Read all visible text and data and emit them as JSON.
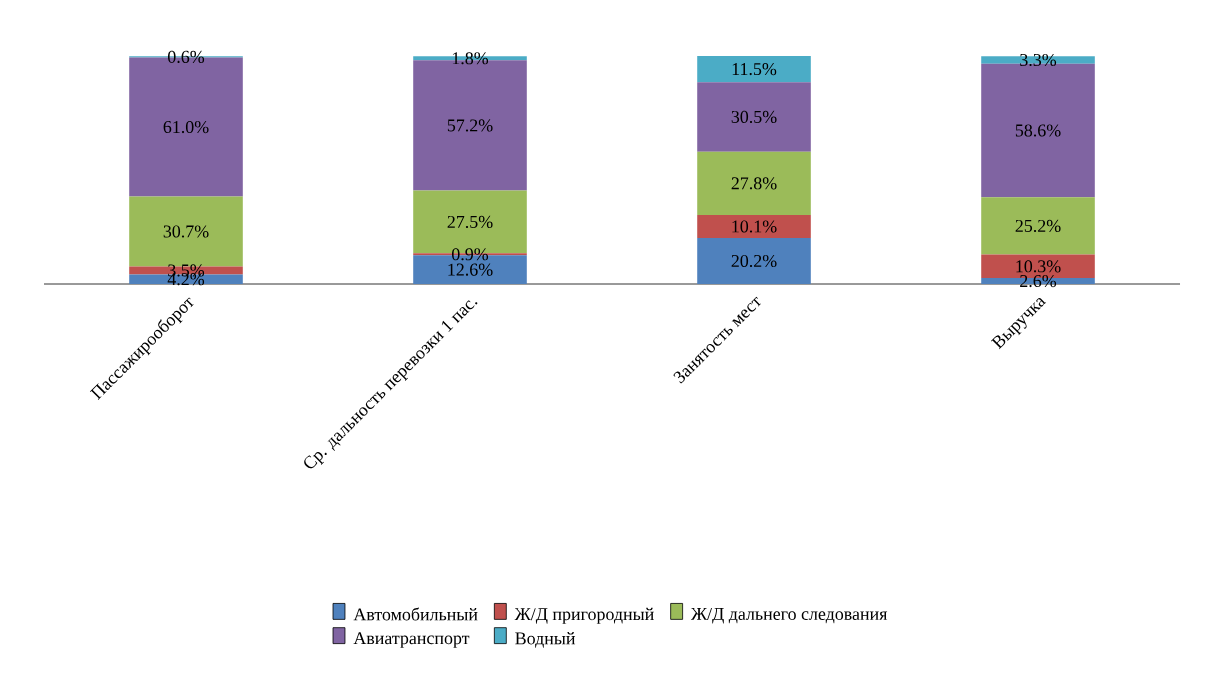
{
  "chart_data": {
    "type": "bar",
    "stacked": true,
    "legend": "bottom",
    "categories": [
      "Пассажирооборот",
      "Ср. дальность перевозки 1 пас.",
      "Занятость мест",
      "Выручка"
    ],
    "series": [
      {
        "name": "Автомобильный",
        "color": "#4f81bd",
        "values": [
          4.2,
          12.6,
          20.2,
          2.6
        ],
        "value_labels": [
          "4.2%",
          "12.6%",
          "20.2%",
          "2.6%"
        ]
      },
      {
        "name": "Ж/Д пригородный",
        "color": "#c0504d",
        "values": [
          3.5,
          0.9,
          10.1,
          10.3
        ],
        "value_labels": [
          "3.5%",
          "0.9%",
          "10.1%",
          "10.3%"
        ]
      },
      {
        "name": "Ж/Д дальнего следования",
        "color": "#9bbb59",
        "values": [
          30.7,
          27.5,
          27.8,
          25.2
        ],
        "value_labels": [
          "30.7%",
          "27.5%",
          "27.8%",
          "25.2%"
        ]
      },
      {
        "name": "Авиатранспорт",
        "color": "#8064a2",
        "values": [
          61.0,
          57.2,
          30.5,
          58.6
        ],
        "value_labels": [
          "61.0%",
          "57.2%",
          "30.5%",
          "58.6%"
        ]
      },
      {
        "name": "Водный",
        "color": "#4bacc6",
        "values": [
          0.6,
          1.8,
          11.5,
          3.3
        ],
        "value_labels": [
          "0.6%",
          "1.8%",
          "11.5%",
          "3.3%"
        ]
      }
    ]
  }
}
